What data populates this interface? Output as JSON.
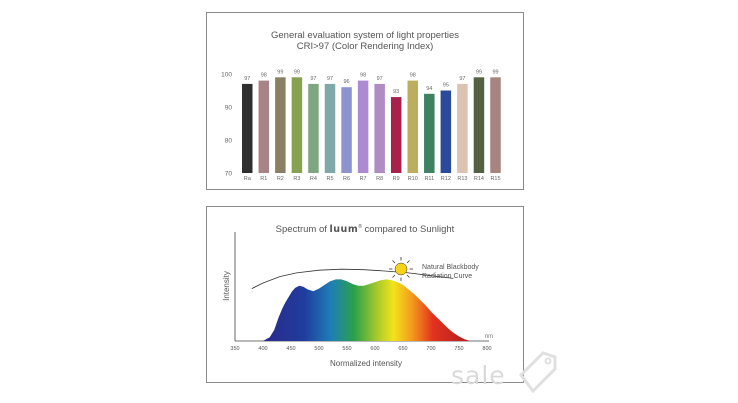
{
  "cri_panel": {
    "title_line1": "General evaluation system of light properties",
    "title_line2": "CRI>97 (Color Rendering Index)"
  },
  "spectrum_panel": {
    "title_prefix": "Spectrum of",
    "brand": "luum",
    "brand_mark": "®",
    "title_suffix": "compared to Sunlight",
    "annotation_line1": "Natural Blackbody",
    "annotation_line2": "Radiation Curve",
    "sun_icon": "sun-icon"
  },
  "watermark": {
    "text": "sale"
  },
  "chart_data": [
    {
      "type": "bar",
      "title": "General evaluation system of light properties",
      "subtitle": "CRI>97 (Color Rendering Index)",
      "categories": [
        "Ra",
        "R1",
        "R2",
        "R3",
        "R4",
        "R5",
        "R6",
        "R7",
        "R8",
        "R9",
        "R10",
        "R11",
        "R12",
        "R13",
        "R14",
        "R15"
      ],
      "values": [
        97,
        98,
        99,
        99,
        97,
        97,
        96,
        98,
        97,
        93,
        98,
        94,
        95,
        97,
        99,
        99
      ],
      "colors": [
        "#2f2f2f",
        "#a98486",
        "#8a7f63",
        "#86a150",
        "#7fa77f",
        "#7fa9a8",
        "#8e93cf",
        "#ad8ad2",
        "#b08bc4",
        "#a8214a",
        "#bcae5e",
        "#3e8262",
        "#2c4a9c",
        "#dcc2b0",
        "#546042",
        "#a88480"
      ],
      "yticks": [
        70,
        80,
        90,
        100
      ],
      "ylim": [
        70,
        100
      ]
    },
    {
      "type": "area",
      "title": "Spectrum of luum compared to Sunlight",
      "xlabel": "Normalized intensity",
      "ylabel": "Intensity",
      "xunit": "nm",
      "xticks": [
        350,
        400,
        450,
        500,
        550,
        600,
        650,
        700,
        750,
        800
      ],
      "xlim": [
        350,
        800
      ],
      "ylim": [
        0,
        1
      ],
      "series": [
        {
          "name": "luum",
          "x": [
            400,
            412,
            420,
            428,
            435,
            440,
            446,
            452,
            458,
            465,
            472,
            480,
            490,
            500,
            510,
            520,
            530,
            540,
            550,
            560,
            570,
            580,
            590,
            600,
            610,
            620,
            630,
            640,
            650,
            660,
            670,
            680,
            690,
            700,
            710,
            720,
            730,
            740,
            750,
            760,
            770
          ],
          "y": [
            0.0,
            0.04,
            0.12,
            0.26,
            0.36,
            0.42,
            0.48,
            0.54,
            0.58,
            0.6,
            0.59,
            0.56,
            0.54,
            0.57,
            0.61,
            0.65,
            0.67,
            0.67,
            0.65,
            0.62,
            0.6,
            0.6,
            0.62,
            0.64,
            0.66,
            0.67,
            0.66,
            0.64,
            0.61,
            0.56,
            0.51,
            0.45,
            0.39,
            0.32,
            0.26,
            0.2,
            0.14,
            0.09,
            0.05,
            0.02,
            0.0
          ]
        },
        {
          "name": "Natural Blackbody Radiation Curve",
          "x": [
            380,
            400,
            430,
            460,
            500,
            540,
            580,
            620,
            660,
            700,
            740
          ],
          "y": [
            0.57,
            0.63,
            0.7,
            0.74,
            0.77,
            0.78,
            0.775,
            0.76,
            0.74,
            0.71,
            0.68
          ]
        }
      ]
    }
  ]
}
